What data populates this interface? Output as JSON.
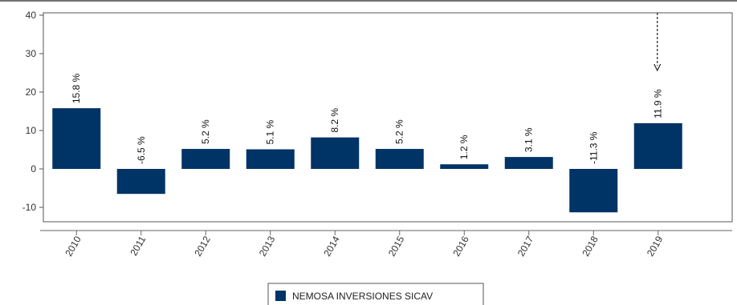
{
  "chart_data": {
    "type": "bar",
    "categories": [
      "2010",
      "2011",
      "2012",
      "2013",
      "2014",
      "2015",
      "2016",
      "2017",
      "2018",
      "2019"
    ],
    "series": [
      {
        "name": "NEMOSA INVERSIONES SICAV",
        "values": [
          15.8,
          -6.5,
          5.2,
          5.1,
          8.2,
          5.2,
          1.2,
          3.1,
          -11.3,
          11.9
        ],
        "labels": [
          "15.8 %",
          "-6.5 %",
          "5.2 %",
          "5.1 %",
          "8.2 %",
          "5.2 %",
          "1.2 %",
          "3.1 %",
          "-11.3 %",
          "11.9 %"
        ]
      }
    ],
    "ylim": [
      -15,
      40
    ],
    "yticks": [
      -10,
      0,
      10,
      20,
      30,
      40
    ],
    "ytick_labels": [
      "-10",
      "0",
      "10",
      "20",
      "30",
      "40"
    ],
    "grid": false,
    "legend": "bottom-center",
    "bar_color": "#003366"
  }
}
